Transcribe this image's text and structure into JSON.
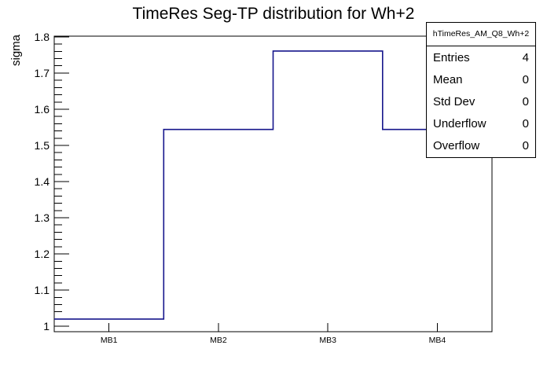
{
  "chart_data": {
    "type": "bar",
    "subtype": "root-step-histogram",
    "title": "TimeRes Seg-TP distribution for Wh+2",
    "xlabel": "",
    "ylabel": "sigma",
    "categories": [
      "MB1",
      "MB2",
      "MB3",
      "MB4"
    ],
    "values": [
      1.02,
      1.544,
      1.761,
      1.544
    ],
    "ylim": [
      0.985,
      1.802
    ],
    "y_major_labels": [
      "1",
      "1.1",
      "1.2",
      "1.3",
      "1.4",
      "1.5",
      "1.6",
      "1.7",
      "1.8"
    ],
    "y_major_step": 0.1,
    "y_minor_step": 0.02,
    "grid": false,
    "legend_position": "none",
    "line_color": "#16168c",
    "axis_color": "#000000",
    "background_color": "#ffffff"
  },
  "stats": {
    "header": "hTimeRes_AM_Q8_Wh+2",
    "rows": [
      {
        "label": "Entries",
        "value": "4"
      },
      {
        "label": "Mean",
        "value": "0"
      },
      {
        "label": "Std Dev",
        "value": "0"
      },
      {
        "label": "Underflow",
        "value": "0"
      },
      {
        "label": "Overflow",
        "value": "0"
      }
    ]
  }
}
